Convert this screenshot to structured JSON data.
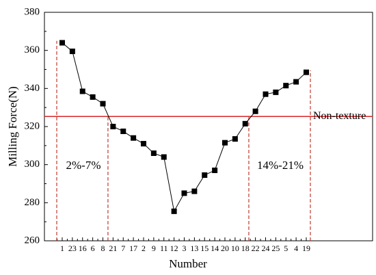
{
  "chart_data": {
    "type": "line",
    "x_label": "Number",
    "y_label": "Milling Force(N)",
    "categories": [
      "1",
      "23",
      "16",
      "6",
      "8",
      "21",
      "7",
      "17",
      "2",
      "9",
      "11",
      "12",
      "3",
      "13",
      "15",
      "14",
      "20",
      "10",
      "18",
      "22",
      "24",
      "25",
      "5",
      "4",
      "19"
    ],
    "series": [
      {
        "name": "Milling force",
        "color": "#000000",
        "values": [
          364,
          359.5,
          338.5,
          335.5,
          332,
          320,
          317.5,
          314,
          311,
          306,
          304,
          275.5,
          285,
          286,
          294.5,
          297,
          311.5,
          313.5,
          321.5,
          328,
          337,
          338,
          341.5,
          343.5,
          348.5
        ]
      }
    ],
    "ylim": [
      260,
      380
    ],
    "yticks": [
      260,
      280,
      300,
      320,
      340,
      360,
      380
    ],
    "reference_line": {
      "value": 325.3,
      "label": "Non-texture",
      "color": "#d62728"
    },
    "annotations": [
      "2%-7%",
      "14%-21%"
    ]
  }
}
